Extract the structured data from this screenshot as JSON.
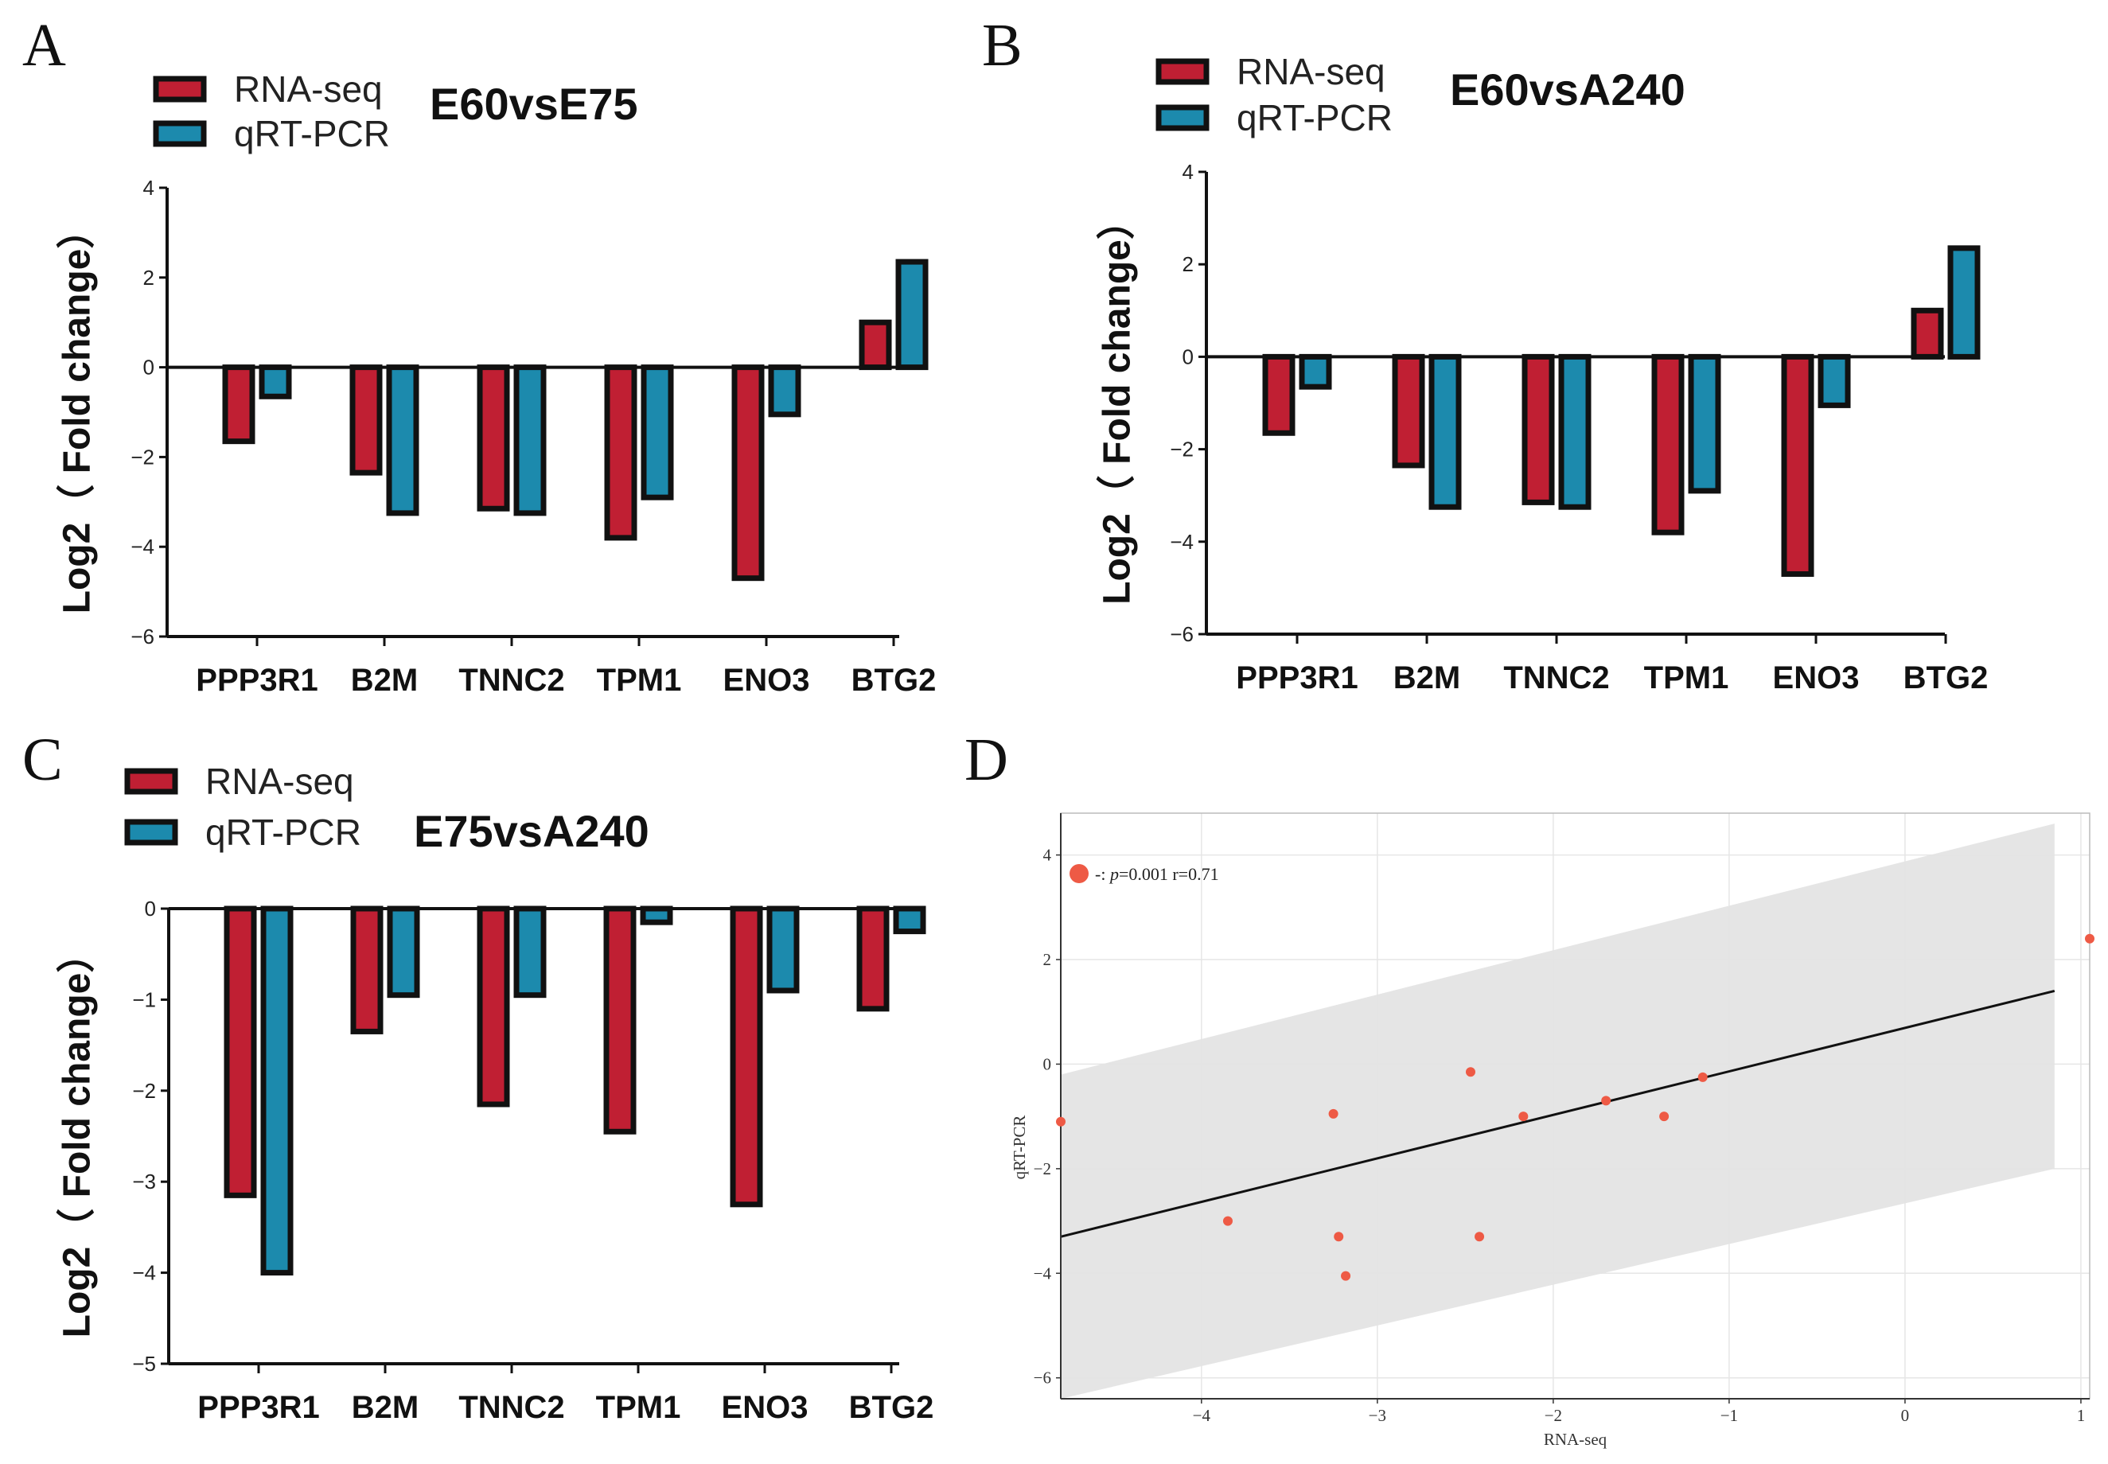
{
  "panel_letters": [
    "A",
    "B",
    "C",
    "D"
  ],
  "colors": {
    "rna": "#c01f33",
    "qpcr": "#1c8aad",
    "edge": "#111111",
    "point": "#ee5a45",
    "band": "#e4e4e4"
  },
  "chart_data": [
    {
      "id": "A",
      "type": "bar",
      "title": "E60vsE75",
      "ylabel": "Log2（ Fold change）",
      "ylim": [
        -6,
        4
      ],
      "yticks": [
        4,
        2,
        0,
        -2,
        -4,
        -6
      ],
      "ytick_labels": [
        "4",
        "2",
        "0",
        "−2",
        "−4",
        "−6"
      ],
      "categories": [
        "PPP3R1",
        "B2M",
        "TNNC2",
        "TPM1",
        "ENO3",
        "BTG2"
      ],
      "legend": [
        "RNA-seq",
        "qRT-PCR"
      ],
      "series": [
        {
          "name": "RNA-seq",
          "values": [
            -1.65,
            -2.35,
            -3.15,
            -3.8,
            -4.7,
            1.0
          ]
        },
        {
          "name": "qRT-PCR",
          "values": [
            -0.65,
            -3.25,
            -3.25,
            -2.9,
            -1.05,
            2.35
          ]
        }
      ]
    },
    {
      "id": "B",
      "type": "bar",
      "title": "E60vsA240",
      "ylabel": "Log2（ Fold change）",
      "ylim": [
        -6,
        4
      ],
      "yticks": [
        4,
        2,
        0,
        -2,
        -4,
        -6
      ],
      "ytick_labels": [
        "4",
        "2",
        "0",
        "−2",
        "−4",
        "−6"
      ],
      "categories": [
        "PPP3R1",
        "B2M",
        "TNNC2",
        "TPM1",
        "ENO3",
        "BTG2"
      ],
      "legend": [
        "RNA-seq",
        "qRT-PCR"
      ],
      "series": [
        {
          "name": "RNA-seq",
          "values": [
            -1.65,
            -2.35,
            -3.15,
            -3.8,
            -4.7,
            1.0
          ]
        },
        {
          "name": "qRT-PCR",
          "values": [
            -0.65,
            -3.25,
            -3.25,
            -2.9,
            -1.05,
            2.35
          ]
        }
      ]
    },
    {
      "id": "C",
      "type": "bar",
      "title": "E75vsA240",
      "ylabel": "Log2（ Fold change）",
      "ylim": [
        -5,
        0
      ],
      "yticks": [
        0,
        -1,
        -2,
        -3,
        -4,
        -5
      ],
      "ytick_labels": [
        "0",
        "−1",
        "−2",
        "−3",
        "−4",
        "−5"
      ],
      "categories": [
        "PPP3R1",
        "B2M",
        "TNNC2",
        "TPM1",
        "ENO3",
        "BTG2"
      ],
      "legend": [
        "RNA-seq",
        "qRT-PCR"
      ],
      "series": [
        {
          "name": "RNA-seq",
          "values": [
            -3.15,
            -1.35,
            -2.15,
            -2.45,
            -3.25,
            -1.1
          ]
        },
        {
          "name": "qRT-PCR",
          "values": [
            -4.0,
            -0.95,
            -0.95,
            -0.15,
            -0.9,
            -0.25
          ]
        }
      ]
    },
    {
      "id": "D",
      "type": "scatter",
      "xlabel": "RNA-seq",
      "ylabel": "qRT-PCR",
      "xlim": [
        -4.8,
        1.05
      ],
      "ylim": [
        -6.4,
        4.8
      ],
      "xticks": [
        -4,
        -3,
        -2,
        -1,
        0,
        1
      ],
      "xtick_labels": [
        "−4",
        "−3",
        "−2",
        "−1",
        "0",
        "1"
      ],
      "yticks": [
        4,
        2,
        0,
        -2,
        -4,
        -6
      ],
      "ytick_labels": [
        "4",
        "2",
        "0",
        "−2",
        "−4",
        "−6"
      ],
      "legend": {
        "prefix": "-: ",
        "p_symbol": "p",
        "p_value": "=0.001",
        "r_text": "r=0.71"
      },
      "points": [
        {
          "x": -4.8,
          "y": -1.1
        },
        {
          "x": -3.85,
          "y": -3.0
        },
        {
          "x": -3.25,
          "y": -0.95
        },
        {
          "x": -3.22,
          "y": -3.3
        },
        {
          "x": -3.18,
          "y": -4.05
        },
        {
          "x": -2.47,
          "y": -0.15
        },
        {
          "x": -2.42,
          "y": -3.3
        },
        {
          "x": -2.17,
          "y": -1.0
        },
        {
          "x": -1.7,
          "y": -0.7
        },
        {
          "x": -1.37,
          "y": -1.0
        },
        {
          "x": -1.15,
          "y": -0.25
        },
        {
          "x": 1.05,
          "y": 2.4
        }
      ],
      "fit_line": {
        "x": [
          -4.8,
          0.85
        ],
        "y": [
          -3.3,
          1.4
        ]
      },
      "confidence_band": {
        "x": [
          -4.8,
          0.85
        ],
        "upper": [
          -0.2,
          4.6
        ],
        "lower": [
          -6.4,
          -2.0
        ]
      },
      "grid": true
    }
  ]
}
